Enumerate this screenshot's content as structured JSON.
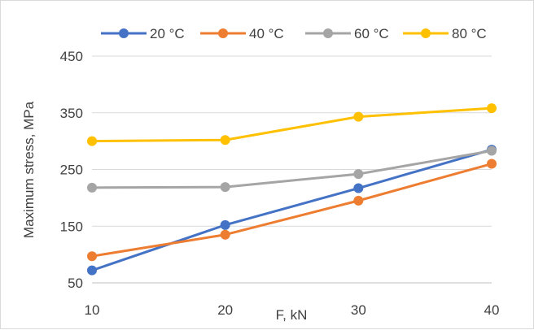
{
  "chart_data": {
    "type": "line",
    "title": "",
    "xlabel": "F, kN",
    "ylabel": "Maximum stress, MPa",
    "x": [
      10,
      20,
      30,
      40
    ],
    "x_ticks": [
      "10",
      "20",
      "30",
      "40"
    ],
    "y_ticks": [
      "50",
      "150",
      "250",
      "350",
      "450"
    ],
    "ylim": [
      50,
      450
    ],
    "grid": "horizontal",
    "legend_position": "top",
    "series": [
      {
        "name": "20 °C",
        "color": "#4472c4",
        "values": [
          72,
          152,
          217,
          285
        ]
      },
      {
        "name": "40 °C",
        "color": "#ed7d31",
        "values": [
          97,
          135,
          195,
          260
        ]
      },
      {
        "name": "60 °C",
        "color": "#a5a5a5",
        "values": [
          218,
          219,
          242,
          283
        ]
      },
      {
        "name": "80 °C",
        "color": "#ffc000",
        "values": [
          300,
          302,
          343,
          358
        ]
      }
    ]
  }
}
